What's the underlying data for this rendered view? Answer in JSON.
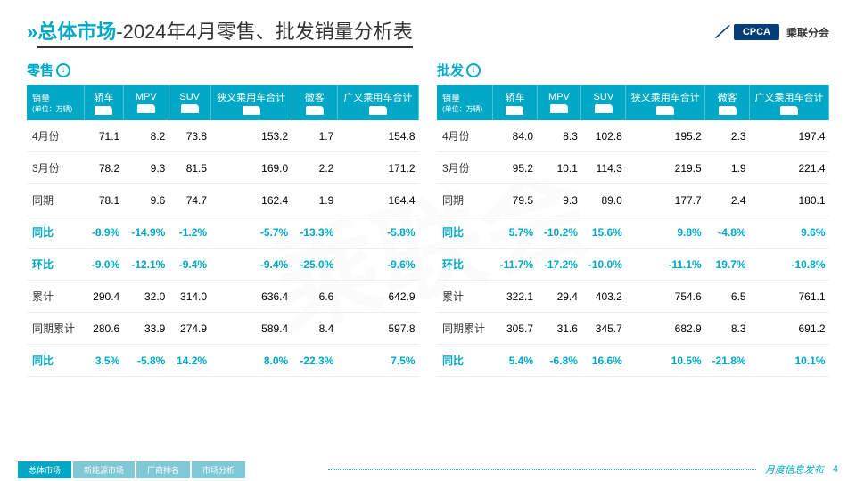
{
  "header": {
    "title_part1": "总体市场",
    "title_part2": "-2024年4月零售、批发销量分析表",
    "logo_badge": "CPCA",
    "logo_text": "乘联分会"
  },
  "columns": {
    "label_main": "销量",
    "label_sub": "(单位：万辆)",
    "headers": [
      "轿车",
      "MPV",
      "SUV",
      "狭义乘用车合计",
      "微客",
      "广义乘用车合计"
    ]
  },
  "row_labels": [
    "4月份",
    "3月份",
    "同期",
    "同比",
    "环比",
    "累计",
    "同期累计",
    "同比"
  ],
  "teal_rows": [
    3,
    4,
    7
  ],
  "retail": {
    "title": "零售",
    "rows": [
      [
        "71.1",
        "8.2",
        "73.8",
        "153.2",
        "1.7",
        "154.8"
      ],
      [
        "78.2",
        "9.3",
        "81.5",
        "169.0",
        "2.2",
        "171.2"
      ],
      [
        "78.1",
        "9.6",
        "74.7",
        "162.4",
        "1.9",
        "164.4"
      ],
      [
        "-8.9%",
        "-14.9%",
        "-1.2%",
        "-5.7%",
        "-13.3%",
        "-5.8%"
      ],
      [
        "-9.0%",
        "-12.1%",
        "-9.4%",
        "-9.4%",
        "-25.0%",
        "-9.6%"
      ],
      [
        "290.4",
        "32.0",
        "314.0",
        "636.4",
        "6.6",
        "642.9"
      ],
      [
        "280.6",
        "33.9",
        "274.9",
        "589.4",
        "8.4",
        "597.8"
      ],
      [
        "3.5%",
        "-5.8%",
        "14.2%",
        "8.0%",
        "-22.3%",
        "7.5%"
      ]
    ]
  },
  "wholesale": {
    "title": "批发",
    "rows": [
      [
        "84.0",
        "8.3",
        "102.8",
        "195.2",
        "2.3",
        "197.4"
      ],
      [
        "95.2",
        "10.1",
        "114.3",
        "219.5",
        "1.9",
        "221.4"
      ],
      [
        "79.5",
        "9.3",
        "89.0",
        "177.7",
        "2.4",
        "180.1"
      ],
      [
        "5.7%",
        "-10.2%",
        "15.6%",
        "9.8%",
        "-4.8%",
        "9.6%"
      ],
      [
        "-11.7%",
        "-17.2%",
        "-10.0%",
        "-11.1%",
        "19.7%",
        "-10.8%"
      ],
      [
        "322.1",
        "29.4",
        "403.2",
        "754.6",
        "6.5",
        "761.1"
      ],
      [
        "305.7",
        "31.6",
        "345.7",
        "682.9",
        "8.3",
        "691.2"
      ],
      [
        "5.4%",
        "-6.8%",
        "16.6%",
        "10.5%",
        "-21.8%",
        "10.1%"
      ]
    ]
  },
  "footer": {
    "tabs": [
      "总体市场",
      "新能源市场",
      "厂商排名",
      "市场分析"
    ],
    "active_tab": 0,
    "right_text": "月度信息发布",
    "page": "4"
  },
  "colors": {
    "accent": "#00a8c6",
    "header_bg": "#00a8c6"
  }
}
